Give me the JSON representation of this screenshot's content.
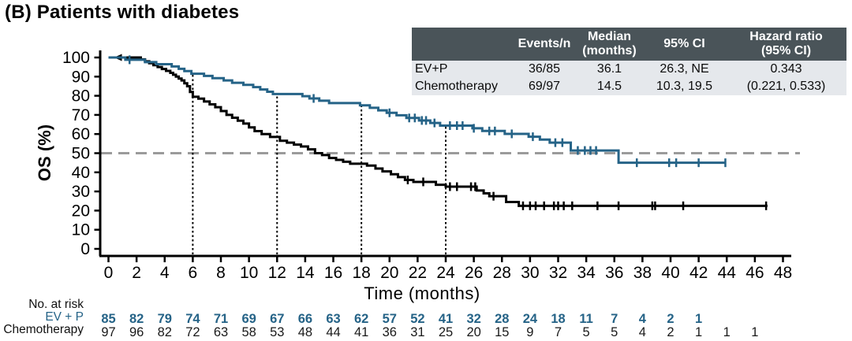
{
  "title": "(B) Patients with diabetes",
  "colors": {
    "ev_p": "#256387",
    "chemotherapy": "#000000",
    "reference_line": "#9B9B9B",
    "table_header_bg": "#4A5459",
    "table_header_text": "#FFFFFF",
    "table_row_bg": "#E5E8EC"
  },
  "summary_table": {
    "columns": [
      "",
      "Events/n",
      "Median\n(months)",
      "95% CI",
      "Hazard ratio\n(95% CI)"
    ],
    "rows": [
      {
        "name": "EV+P",
        "events_n": "36/85",
        "median": "36.1",
        "ci": "26.3, NE",
        "hr": "0.343"
      },
      {
        "name": "Chemotherapy",
        "events_n": "69/97",
        "median": "14.5",
        "ci": "10.3, 19.5",
        "hr": "(0.221, 0.533)"
      }
    ]
  },
  "chart_data": {
    "type": "line",
    "subtype": "kaplan-meier-step",
    "title": "(B) Patients with diabetes",
    "xlabel": "Time (months)",
    "ylabel": "OS (%)",
    "xlim": [
      0,
      48
    ],
    "ylim": [
      0,
      100
    ],
    "x_ticks": [
      0,
      2,
      4,
      6,
      8,
      10,
      12,
      14,
      16,
      18,
      20,
      22,
      24,
      26,
      28,
      30,
      32,
      34,
      36,
      38,
      40,
      42,
      44,
      46,
      48
    ],
    "y_ticks": [
      0,
      10,
      20,
      30,
      40,
      50,
      60,
      70,
      80,
      90,
      100
    ],
    "grid": false,
    "reference_line_y": 50,
    "dotted_vlines_x": [
      6,
      12,
      18,
      24
    ],
    "series": [
      {
        "name": "EV+P",
        "color": "#256387",
        "steps": [
          [
            0,
            100
          ],
          [
            1.2,
            98.8
          ],
          [
            2.6,
            97.6
          ],
          [
            3.4,
            96.5
          ],
          [
            4.5,
            95.3
          ],
          [
            5.0,
            94.1
          ],
          [
            5.4,
            92.9
          ],
          [
            5.9,
            91.5
          ],
          [
            6.8,
            90.4
          ],
          [
            7.4,
            89.2
          ],
          [
            8.2,
            88.0
          ],
          [
            8.8,
            86.8
          ],
          [
            9.6,
            85.7
          ],
          [
            10.3,
            84.5
          ],
          [
            10.8,
            83.3
          ],
          [
            11.3,
            82.1
          ],
          [
            11.7,
            80.9
          ],
          [
            13.8,
            79.8
          ],
          [
            14.3,
            78.6
          ],
          [
            15.0,
            77.4
          ],
          [
            15.7,
            76.2
          ],
          [
            17.9,
            75.0
          ],
          [
            18.6,
            73.7
          ],
          [
            19.2,
            72.4
          ],
          [
            19.8,
            71.1
          ],
          [
            20.5,
            69.8
          ],
          [
            21.2,
            68.4
          ],
          [
            22.1,
            67.1
          ],
          [
            22.9,
            65.8
          ],
          [
            23.6,
            64.4
          ],
          [
            25.9,
            63.0
          ],
          [
            26.6,
            61.6
          ],
          [
            28.2,
            60.1
          ],
          [
            29.9,
            58.6
          ],
          [
            30.7,
            57.1
          ],
          [
            31.4,
            55.5
          ],
          [
            32.9,
            51.4
          ],
          [
            36.3,
            45.0
          ],
          [
            43.9,
            45.0
          ]
        ],
        "censors": [
          [
            1.5,
            98.8
          ],
          [
            14.6,
            78.6
          ],
          [
            20.0,
            71.1
          ],
          [
            21.4,
            68.4
          ],
          [
            21.8,
            68.4
          ],
          [
            22.3,
            67.1
          ],
          [
            22.6,
            67.1
          ],
          [
            23.2,
            65.8
          ],
          [
            24.3,
            64.4
          ],
          [
            24.8,
            64.4
          ],
          [
            25.2,
            64.4
          ],
          [
            26.0,
            63.0
          ],
          [
            27.1,
            61.6
          ],
          [
            27.5,
            61.6
          ],
          [
            28.7,
            60.1
          ],
          [
            30.2,
            58.6
          ],
          [
            31.8,
            55.5
          ],
          [
            32.3,
            55.5
          ],
          [
            33.4,
            51.4
          ],
          [
            33.9,
            51.4
          ],
          [
            34.3,
            51.4
          ],
          [
            34.7,
            51.4
          ],
          [
            37.6,
            45.0
          ],
          [
            39.9,
            45.0
          ],
          [
            40.4,
            45.0
          ],
          [
            42.0,
            45.0
          ],
          [
            43.9,
            45.0
          ]
        ]
      },
      {
        "name": "Chemotherapy",
        "color": "#000000",
        "start_arrow": [
          0.45,
          100
        ],
        "steps": [
          [
            0,
            100
          ],
          [
            2.3,
            99
          ],
          [
            2.6,
            98
          ],
          [
            2.9,
            97
          ],
          [
            3.2,
            96
          ],
          [
            3.5,
            95
          ],
          [
            3.8,
            94
          ],
          [
            4.1,
            93
          ],
          [
            4.4,
            92
          ],
          [
            4.6,
            91
          ],
          [
            4.8,
            90
          ],
          [
            5.0,
            89
          ],
          [
            5.2,
            88
          ],
          [
            5.4,
            86.5
          ],
          [
            5.6,
            85
          ],
          [
            5.8,
            82
          ],
          [
            6.0,
            79.5
          ],
          [
            6.4,
            78.5
          ],
          [
            6.8,
            77
          ],
          [
            7.2,
            75.5
          ],
          [
            7.6,
            74
          ],
          [
            8.0,
            72
          ],
          [
            8.4,
            70
          ],
          [
            8.8,
            68.5
          ],
          [
            9.2,
            67
          ],
          [
            9.6,
            65.5
          ],
          [
            10.0,
            63.5
          ],
          [
            10.4,
            61.5
          ],
          [
            10.9,
            60
          ],
          [
            11.5,
            58.5
          ],
          [
            12.2,
            56.5
          ],
          [
            12.7,
            55.5
          ],
          [
            13.2,
            54.5
          ],
          [
            13.7,
            53.5
          ],
          [
            14.2,
            52
          ],
          [
            14.7,
            50
          ],
          [
            15.2,
            49
          ],
          [
            15.7,
            47.5
          ],
          [
            16.2,
            46.5
          ],
          [
            16.7,
            45.5
          ],
          [
            17.2,
            44.5
          ],
          [
            18.4,
            43.5
          ],
          [
            19.0,
            42
          ],
          [
            19.5,
            40.5
          ],
          [
            20.1,
            39
          ],
          [
            20.6,
            37.5
          ],
          [
            21.1,
            36
          ],
          [
            21.7,
            35
          ],
          [
            23.3,
            33.5
          ],
          [
            24.0,
            32.5
          ],
          [
            26.2,
            30.5
          ],
          [
            26.7,
            29
          ],
          [
            27.1,
            27.5
          ],
          [
            28.3,
            24.5
          ],
          [
            29.2,
            22.5
          ],
          [
            46.9,
            22.5
          ]
        ],
        "censors": [
          [
            21.3,
            36
          ],
          [
            22.4,
            35
          ],
          [
            24.3,
            32.5
          ],
          [
            24.8,
            32.5
          ],
          [
            25.8,
            32.5
          ],
          [
            26.1,
            32.5
          ],
          [
            27.4,
            27.5
          ],
          [
            29.5,
            22.5
          ],
          [
            30.0,
            22.5
          ],
          [
            30.4,
            22.5
          ],
          [
            31.0,
            22.5
          ],
          [
            31.7,
            22.5
          ],
          [
            32.0,
            22.5
          ],
          [
            32.4,
            22.5
          ],
          [
            33.0,
            22.5
          ],
          [
            34.8,
            22.5
          ],
          [
            36.3,
            22.5
          ],
          [
            38.7,
            22.5
          ],
          [
            38.9,
            22.5
          ],
          [
            40.9,
            22.5
          ],
          [
            46.8,
            22.5
          ]
        ]
      }
    ]
  },
  "at_risk": {
    "label": "No. at risk",
    "rows": [
      {
        "label": "EV + P",
        "color": "#256387",
        "bold": true,
        "times": [
          0,
          2,
          4,
          6,
          8,
          10,
          12,
          14,
          16,
          18,
          20,
          22,
          24,
          26,
          28,
          30,
          32,
          34,
          36,
          38,
          40,
          42
        ],
        "counts": [
          85,
          82,
          79,
          74,
          71,
          69,
          67,
          66,
          63,
          62,
          57,
          52,
          41,
          32,
          28,
          24,
          18,
          11,
          7,
          4,
          2,
          1
        ]
      },
      {
        "label": "Chemotherapy",
        "color": "#1a1a1a",
        "bold": false,
        "times": [
          0,
          2,
          4,
          6,
          8,
          10,
          12,
          14,
          16,
          18,
          20,
          22,
          24,
          26,
          28,
          30,
          32,
          34,
          36,
          38,
          40,
          42,
          44,
          46
        ],
        "counts": [
          97,
          96,
          82,
          72,
          63,
          58,
          53,
          48,
          44,
          41,
          36,
          31,
          25,
          20,
          15,
          9,
          7,
          5,
          5,
          4,
          2,
          1,
          1,
          1
        ]
      }
    ]
  }
}
